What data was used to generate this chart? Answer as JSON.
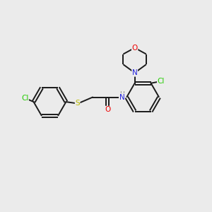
{
  "background_color": "#ebebeb",
  "bond_color": "#1a1a1a",
  "figsize": [
    3.0,
    3.0
  ],
  "dpi": 100,
  "atom_colors": {
    "Cl": "#22cc00",
    "S": "#bbbb00",
    "O": "#ee0000",
    "N": "#2222dd",
    "H": "#888888",
    "C": "#1a1a1a"
  },
  "lw": 1.4
}
